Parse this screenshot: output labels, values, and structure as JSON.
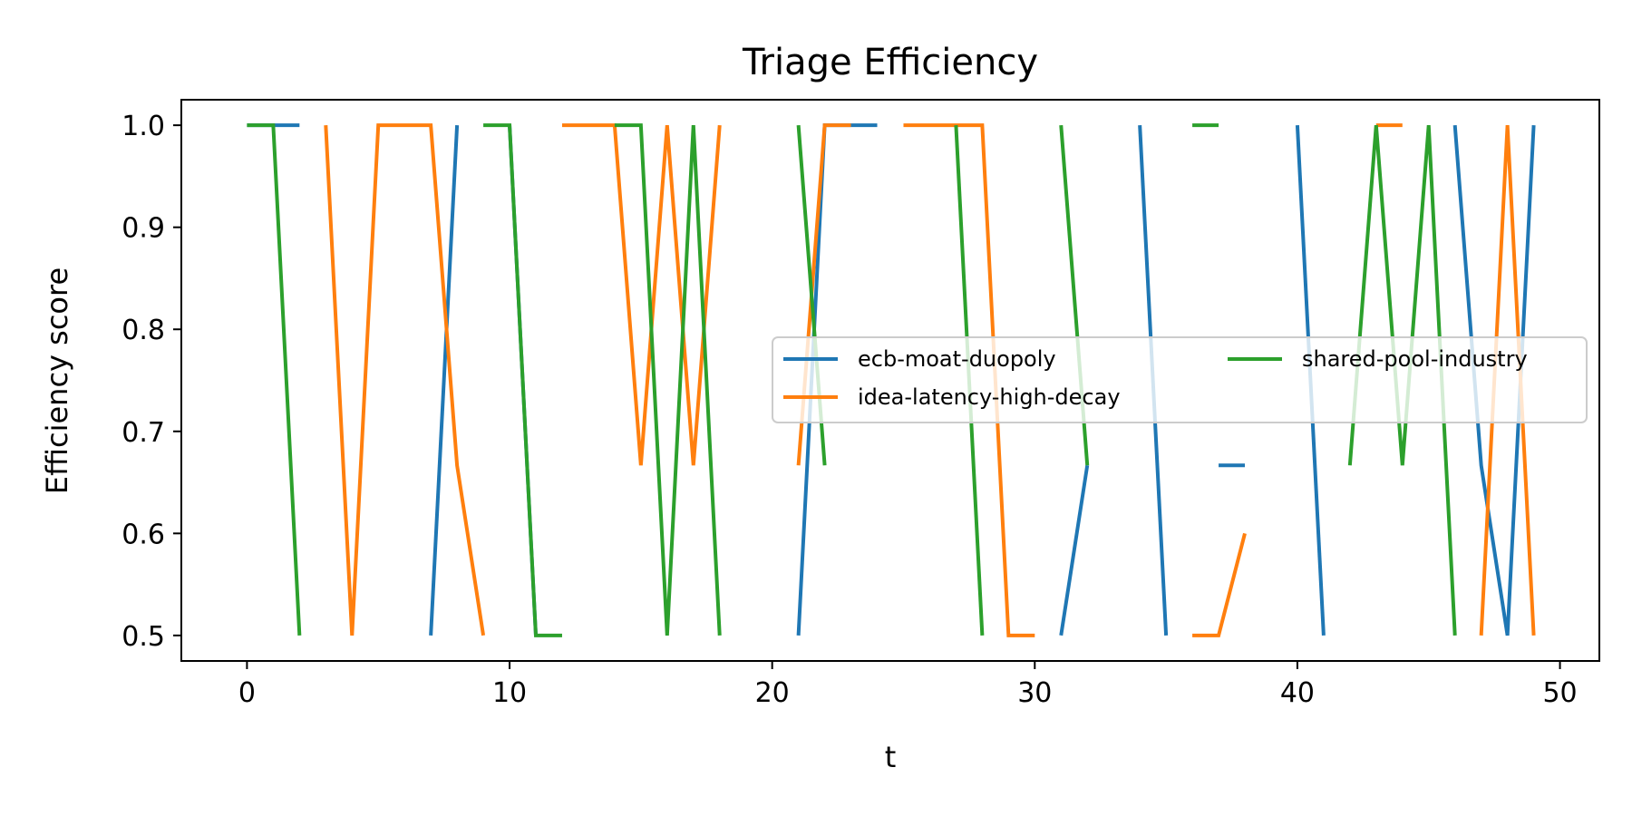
{
  "chart_data": {
    "type": "line",
    "title": "Triage Efficiency",
    "xlabel": "t",
    "ylabel": "Efficiency score",
    "xlim": [
      -2.5,
      51.5
    ],
    "ylim": [
      0.475,
      1.025
    ],
    "xticks": [
      0,
      10,
      20,
      30,
      40,
      50
    ],
    "yticks": [
      0.5,
      0.6,
      0.7,
      0.8,
      0.9,
      1.0
    ],
    "ytick_labels": [
      "0.5",
      "0.6",
      "0.7",
      "0.8",
      "0.9",
      "1.0"
    ],
    "grid": false,
    "legend_placement": "center-right",
    "legend_columns": 2,
    "series": [
      {
        "name": "ecb-moat-duopoly",
        "color": "#1f77b4",
        "x": [
          0,
          1,
          2,
          3,
          4,
          5,
          6,
          7,
          8,
          9,
          10,
          11,
          12,
          13,
          14,
          15,
          16,
          17,
          18,
          19,
          20,
          21,
          22,
          23,
          24,
          25,
          26,
          27,
          28,
          29,
          30,
          31,
          32,
          33,
          34,
          35,
          36,
          37,
          38,
          39,
          40,
          41,
          42,
          43,
          44,
          45,
          46,
          47,
          48,
          49
        ],
        "y": [
          1.0,
          1.0,
          1.0,
          null,
          1.0,
          null,
          null,
          0.5,
          1.0,
          null,
          1.0,
          0.5,
          null,
          1.0,
          null,
          1.0,
          null,
          null,
          null,
          null,
          null,
          0.5,
          1.0,
          1.0,
          1.0,
          null,
          null,
          null,
          null,
          null,
          null,
          0.5,
          0.6667,
          null,
          1.0,
          0.5,
          null,
          0.6667,
          0.6667,
          null,
          1.0,
          0.5,
          null,
          0.5,
          null,
          null,
          1.0,
          0.6667,
          0.5,
          1.0
        ]
      },
      {
        "name": "idea-latency-high-decay",
        "color": "#ff7f0e",
        "x": [
          0,
          1,
          2,
          3,
          4,
          5,
          6,
          7,
          8,
          9,
          10,
          11,
          12,
          13,
          14,
          15,
          16,
          17,
          18,
          19,
          20,
          21,
          22,
          23,
          24,
          25,
          26,
          27,
          28,
          29,
          30,
          31,
          32,
          33,
          34,
          35,
          36,
          37,
          38,
          39,
          40,
          41,
          42,
          43,
          44,
          45,
          46,
          47,
          48,
          49
        ],
        "y": [
          null,
          null,
          null,
          1.0,
          0.5,
          1.0,
          1.0,
          1.0,
          0.6667,
          0.5,
          null,
          null,
          1.0,
          1.0,
          1.0,
          0.6667,
          1.0,
          0.6667,
          1.0,
          null,
          null,
          0.6667,
          1.0,
          1.0,
          null,
          1.0,
          1.0,
          1.0,
          1.0,
          0.5,
          0.5,
          null,
          null,
          null,
          null,
          null,
          0.5,
          0.5,
          0.6,
          null,
          null,
          null,
          null,
          1.0,
          1.0,
          null,
          null,
          0.5,
          1.0,
          0.5
        ]
      },
      {
        "name": "shared-pool-industry",
        "color": "#2ca02c",
        "x": [
          0,
          1,
          2,
          3,
          4,
          5,
          6,
          7,
          8,
          9,
          10,
          11,
          12,
          13,
          14,
          15,
          16,
          17,
          18,
          19,
          20,
          21,
          22,
          23,
          24,
          25,
          26,
          27,
          28,
          29,
          30,
          31,
          32,
          33,
          34,
          35,
          36,
          37,
          38,
          39,
          40,
          41,
          42,
          43,
          44,
          45,
          46,
          47,
          48,
          49
        ],
        "y": [
          1.0,
          1.0,
          0.5,
          null,
          null,
          null,
          null,
          null,
          null,
          1.0,
          1.0,
          0.5,
          0.5,
          null,
          1.0,
          1.0,
          0.5,
          1.0,
          0.5,
          null,
          null,
          1.0,
          0.6667,
          null,
          null,
          0.5,
          null,
          1.0,
          0.5,
          null,
          null,
          1.0,
          0.6667,
          null,
          null,
          null,
          1.0,
          1.0,
          null,
          1.0,
          null,
          null,
          0.6667,
          1.0,
          0.6667,
          1.0,
          0.5,
          null,
          null,
          null
        ]
      }
    ]
  }
}
